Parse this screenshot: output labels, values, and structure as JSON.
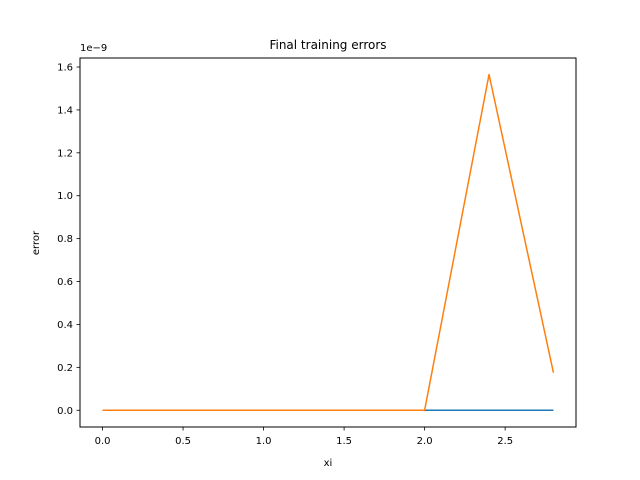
{
  "chart_data": {
    "type": "line",
    "title": "Final training errors",
    "xlabel": "xi",
    "ylabel": "error",
    "y_multiplier_label": "1e−9",
    "xlim": [
      -0.14,
      2.94
    ],
    "ylim": [
      -0.078,
      1.642
    ],
    "xticks": [
      0.0,
      0.5,
      1.0,
      1.5,
      2.0,
      2.5
    ],
    "xtick_labels": [
      "0.0",
      "0.5",
      "1.0",
      "1.5",
      "2.0",
      "2.5"
    ],
    "yticks": [
      0.0,
      0.2,
      0.4,
      0.6,
      0.8,
      1.0,
      1.2,
      1.4,
      1.6
    ],
    "ytick_labels": [
      "0.0",
      "0.2",
      "0.4",
      "0.6",
      "0.8",
      "1.0",
      "1.2",
      "1.4",
      "1.6"
    ],
    "grid": false,
    "x": [
      0.0,
      0.4,
      0.8,
      1.2,
      1.6,
      2.0,
      2.4,
      2.8
    ],
    "series": [
      {
        "color": "#1f77b4",
        "values": [
          0,
          0,
          0,
          0,
          0,
          0,
          0,
          0
        ]
      },
      {
        "color": "#ff7f0e",
        "values": [
          0,
          0,
          0,
          0,
          0,
          0,
          1.565,
          0.175
        ]
      }
    ]
  }
}
